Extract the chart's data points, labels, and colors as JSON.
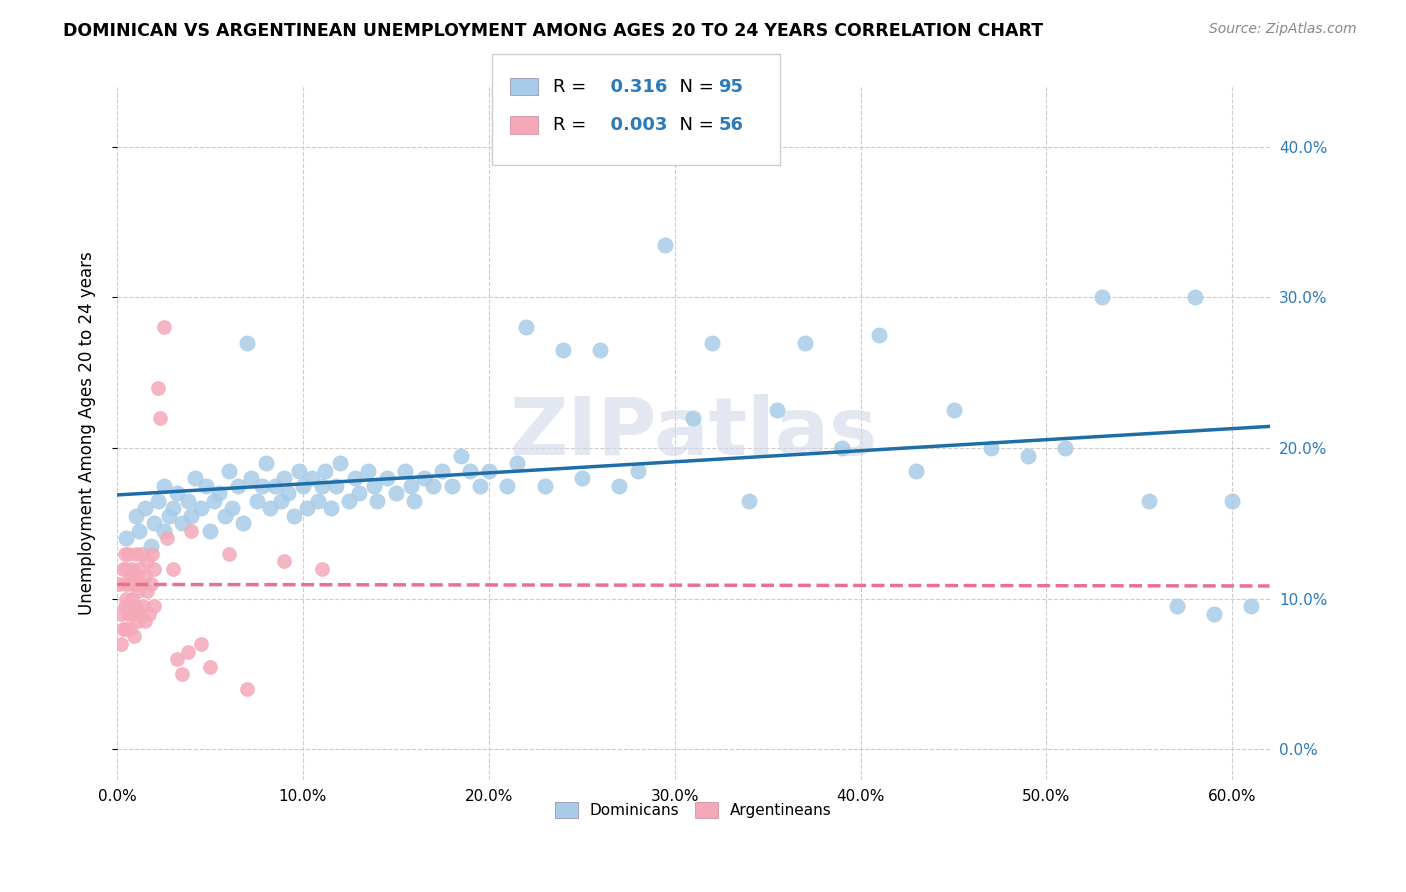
{
  "title": "DOMINICAN VS ARGENTINEAN UNEMPLOYMENT AMONG AGES 20 TO 24 YEARS CORRELATION CHART",
  "source": "Source: ZipAtlas.com",
  "ylabel": "Unemployment Among Ages 20 to 24 years",
  "xlim": [
    0.0,
    0.62
  ],
  "ylim": [
    -0.02,
    0.44
  ],
  "xticks": [
    0.0,
    0.1,
    0.2,
    0.3,
    0.4,
    0.5,
    0.6
  ],
  "yticks": [
    0.0,
    0.1,
    0.2,
    0.3,
    0.4
  ],
  "dominican_color": "#a8cce8",
  "argentinean_color": "#f5a8b8",
  "trendline_dominican_color": "#1e6fa8",
  "trendline_argentinean_color": "#e87090",
  "R_dominican": 0.316,
  "N_dominican": 95,
  "R_argentinean": 0.003,
  "N_argentinean": 56,
  "watermark": "ZIPatlas",
  "legend_dominicans": "Dominicans",
  "legend_argentineans": "Argentineans",
  "background_color": "#ffffff",
  "grid_color": "#cccccc",
  "right_axis_color": "#2b7bba",
  "dom_x": [
    0.005,
    0.01,
    0.012,
    0.015,
    0.018,
    0.02,
    0.022,
    0.025,
    0.025,
    0.028,
    0.03,
    0.032,
    0.035,
    0.038,
    0.04,
    0.042,
    0.045,
    0.048,
    0.05,
    0.052,
    0.055,
    0.058,
    0.06,
    0.062,
    0.065,
    0.068,
    0.07,
    0.072,
    0.075,
    0.078,
    0.08,
    0.082,
    0.085,
    0.088,
    0.09,
    0.092,
    0.095,
    0.098,
    0.1,
    0.102,
    0.105,
    0.108,
    0.11,
    0.112,
    0.115,
    0.118,
    0.12,
    0.125,
    0.128,
    0.13,
    0.135,
    0.138,
    0.14,
    0.145,
    0.15,
    0.155,
    0.158,
    0.16,
    0.165,
    0.17,
    0.175,
    0.18,
    0.185,
    0.19,
    0.195,
    0.2,
    0.21,
    0.215,
    0.22,
    0.23,
    0.24,
    0.25,
    0.26,
    0.27,
    0.28,
    0.295,
    0.31,
    0.32,
    0.34,
    0.355,
    0.37,
    0.39,
    0.41,
    0.43,
    0.45,
    0.47,
    0.49,
    0.51,
    0.53,
    0.555,
    0.57,
    0.58,
    0.59,
    0.6,
    0.61
  ],
  "dom_y": [
    0.14,
    0.155,
    0.145,
    0.16,
    0.135,
    0.15,
    0.165,
    0.145,
    0.175,
    0.155,
    0.16,
    0.17,
    0.15,
    0.165,
    0.155,
    0.18,
    0.16,
    0.175,
    0.145,
    0.165,
    0.17,
    0.155,
    0.185,
    0.16,
    0.175,
    0.15,
    0.27,
    0.18,
    0.165,
    0.175,
    0.19,
    0.16,
    0.175,
    0.165,
    0.18,
    0.17,
    0.155,
    0.185,
    0.175,
    0.16,
    0.18,
    0.165,
    0.175,
    0.185,
    0.16,
    0.175,
    0.19,
    0.165,
    0.18,
    0.17,
    0.185,
    0.175,
    0.165,
    0.18,
    0.17,
    0.185,
    0.175,
    0.165,
    0.18,
    0.175,
    0.185,
    0.175,
    0.195,
    0.185,
    0.175,
    0.185,
    0.175,
    0.19,
    0.28,
    0.175,
    0.265,
    0.18,
    0.265,
    0.175,
    0.185,
    0.335,
    0.22,
    0.27,
    0.165,
    0.225,
    0.27,
    0.2,
    0.275,
    0.185,
    0.225,
    0.2,
    0.195,
    0.2,
    0.3,
    0.165,
    0.095,
    0.3,
    0.09,
    0.165,
    0.095
  ],
  "arg_x": [
    0.001,
    0.002,
    0.002,
    0.003,
    0.003,
    0.004,
    0.004,
    0.004,
    0.005,
    0.005,
    0.005,
    0.006,
    0.006,
    0.006,
    0.007,
    0.007,
    0.007,
    0.008,
    0.008,
    0.008,
    0.009,
    0.009,
    0.01,
    0.01,
    0.01,
    0.011,
    0.011,
    0.012,
    0.012,
    0.013,
    0.013,
    0.014,
    0.015,
    0.015,
    0.016,
    0.016,
    0.017,
    0.018,
    0.019,
    0.02,
    0.02,
    0.022,
    0.023,
    0.025,
    0.027,
    0.03,
    0.032,
    0.035,
    0.038,
    0.04,
    0.045,
    0.05,
    0.06,
    0.07,
    0.09,
    0.11
  ],
  "arg_y": [
    0.11,
    0.09,
    0.07,
    0.12,
    0.08,
    0.13,
    0.095,
    0.11,
    0.08,
    0.1,
    0.12,
    0.09,
    0.11,
    0.13,
    0.095,
    0.115,
    0.08,
    0.1,
    0.12,
    0.09,
    0.11,
    0.075,
    0.13,
    0.095,
    0.115,
    0.085,
    0.105,
    0.12,
    0.09,
    0.11,
    0.13,
    0.095,
    0.115,
    0.085,
    0.105,
    0.125,
    0.09,
    0.11,
    0.13,
    0.12,
    0.095,
    0.24,
    0.22,
    0.28,
    0.14,
    0.12,
    0.06,
    0.05,
    0.065,
    0.145,
    0.07,
    0.055,
    0.13,
    0.04,
    0.125,
    0.12
  ]
}
